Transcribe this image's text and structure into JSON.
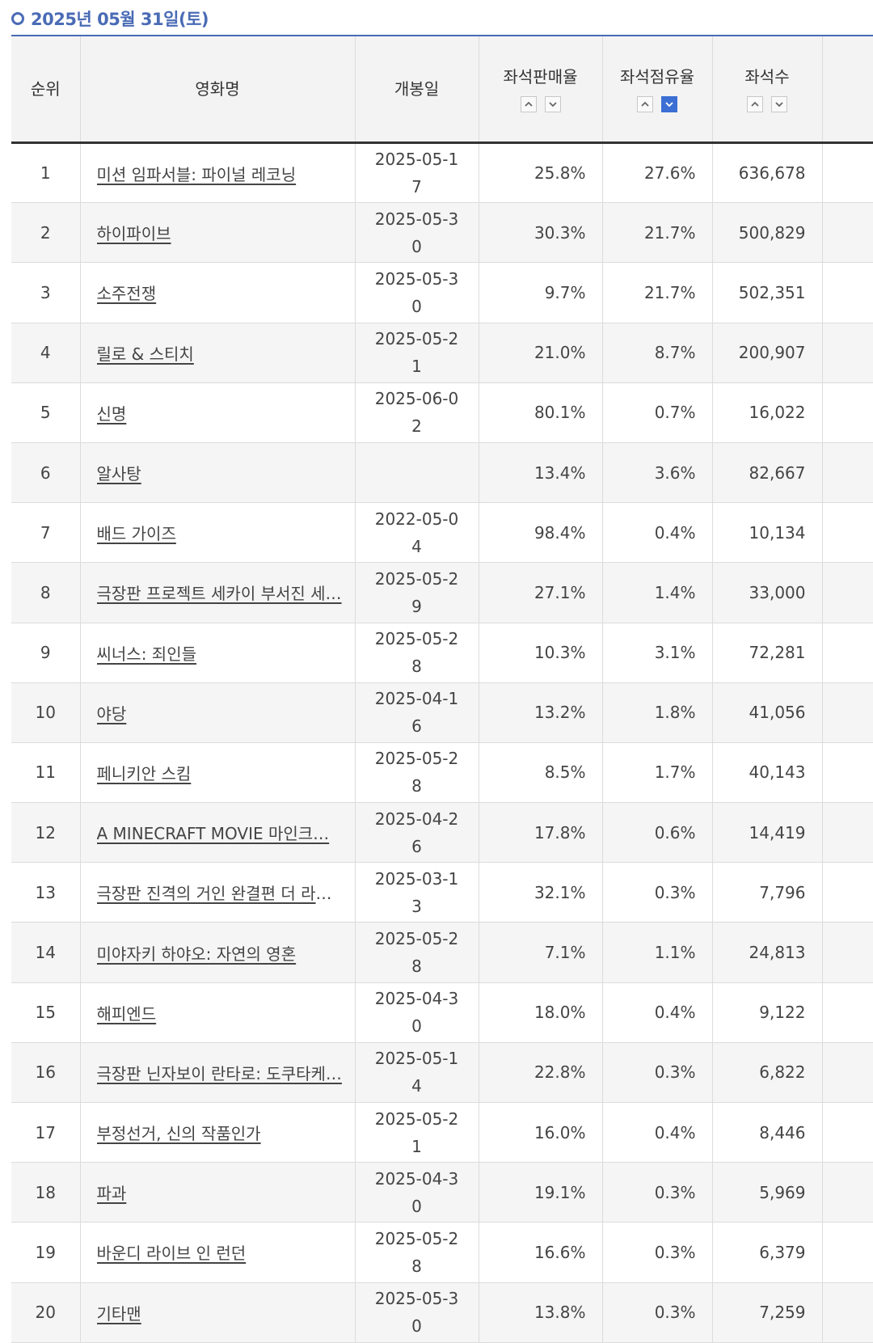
{
  "header": {
    "date": "2025년 05월 31일(토)"
  },
  "table": {
    "columns": {
      "rank": "순위",
      "title": "영화명",
      "release": "개봉일",
      "sales_rate": "좌석판매율",
      "share_rate": "좌석점유율",
      "seats": "좌석수"
    },
    "rows": [
      {
        "rank": "1",
        "title": "미션 임파서블: 파이널 레코닝",
        "release": "2025-05-17",
        "sales": "25.8%",
        "share": "27.6%",
        "seats": "636,678"
      },
      {
        "rank": "2",
        "title": "하이파이브",
        "release": "2025-05-30",
        "sales": "30.3%",
        "share": "21.7%",
        "seats": "500,829"
      },
      {
        "rank": "3",
        "title": "소주전쟁",
        "release": "2025-05-30",
        "sales": "9.7%",
        "share": "21.7%",
        "seats": "502,351"
      },
      {
        "rank": "4",
        "title": "릴로 & 스티치",
        "release": "2025-05-21",
        "sales": "21.0%",
        "share": "8.7%",
        "seats": "200,907"
      },
      {
        "rank": "5",
        "title": "신명",
        "release": "2025-06-02",
        "sales": "80.1%",
        "share": "0.7%",
        "seats": "16,022"
      },
      {
        "rank": "6",
        "title": "알사탕",
        "release": "",
        "sales": "13.4%",
        "share": "3.6%",
        "seats": "82,667"
      },
      {
        "rank": "7",
        "title": "배드 가이즈",
        "release": "2022-05-04",
        "sales": "98.4%",
        "share": "0.4%",
        "seats": "10,134"
      },
      {
        "rank": "8",
        "title": "극장판 프로젝트 세카이 부서진 세…",
        "release": "2025-05-29",
        "sales": "27.1%",
        "share": "1.4%",
        "seats": "33,000"
      },
      {
        "rank": "9",
        "title": "씨너스: 죄인들",
        "release": "2025-05-28",
        "sales": "10.3%",
        "share": "3.1%",
        "seats": "72,281"
      },
      {
        "rank": "10",
        "title": "야당",
        "release": "2025-04-16",
        "sales": "13.2%",
        "share": "1.8%",
        "seats": "41,056"
      },
      {
        "rank": "11",
        "title": "페니키안 스킴",
        "release": "2025-05-28",
        "sales": "8.5%",
        "share": "1.7%",
        "seats": "40,143"
      },
      {
        "rank": "12",
        "title": "A MINECRAFT MOVIE 마인크…",
        "release": "2025-04-26",
        "sales": "17.8%",
        "share": "0.6%",
        "seats": "14,419"
      },
      {
        "rank": "13",
        "title": "극장판 진격의 거인 완결편 더 라스…",
        "release": "2025-03-13",
        "sales": "32.1%",
        "share": "0.3%",
        "seats": "7,796"
      },
      {
        "rank": "14",
        "title": "미야자키 하야오: 자연의 영혼",
        "release": "2025-05-28",
        "sales": "7.1%",
        "share": "1.1%",
        "seats": "24,813"
      },
      {
        "rank": "15",
        "title": "해피엔드",
        "release": "2025-04-30",
        "sales": "18.0%",
        "share": "0.4%",
        "seats": "9,122"
      },
      {
        "rank": "16",
        "title": "극장판 닌자보이 란타로: 도쿠타케…",
        "release": "2025-05-14",
        "sales": "22.8%",
        "share": "0.3%",
        "seats": "6,822"
      },
      {
        "rank": "17",
        "title": "부정선거, 신의 작품인가",
        "release": "2025-05-21",
        "sales": "16.0%",
        "share": "0.4%",
        "seats": "8,446"
      },
      {
        "rank": "18",
        "title": "파과",
        "release": "2025-04-30",
        "sales": "19.1%",
        "share": "0.3%",
        "seats": "5,969"
      },
      {
        "rank": "19",
        "title": "바운디 라이브 인 런던",
        "release": "2025-05-28",
        "sales": "16.6%",
        "share": "0.3%",
        "seats": "6,379"
      },
      {
        "rank": "20",
        "title": "기타맨",
        "release": "2025-05-30",
        "sales": "13.8%",
        "share": "0.3%",
        "seats": "7,259"
      }
    ]
  },
  "sort": {
    "active_column": "share_rate",
    "active_direction": "desc",
    "icons": [
      "chevron-up-icon",
      "chevron-down-icon"
    ]
  },
  "colors": {
    "accent": "#4a6bb5",
    "active_sort": "#3b6fd4"
  }
}
